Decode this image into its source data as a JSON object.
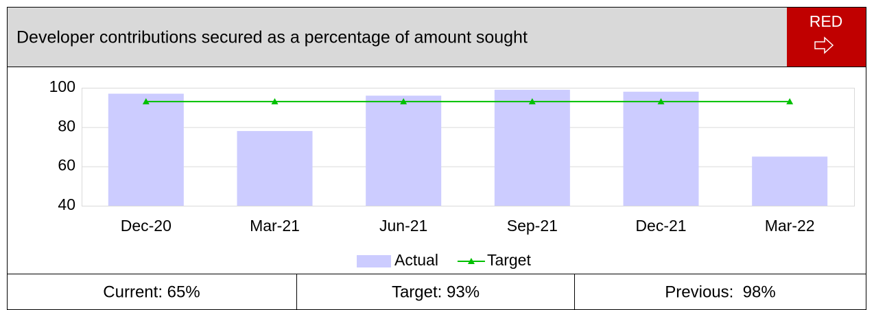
{
  "header": {
    "title": "Developer contributions secured as a percentage of amount sought",
    "status": "RED"
  },
  "chart_data": {
    "type": "bar",
    "categories": [
      "Dec-20",
      "Mar-21",
      "Jun-21",
      "Sep-21",
      "Dec-21",
      "Mar-22"
    ],
    "series": [
      {
        "name": "Actual",
        "type": "bar",
        "color": "#ccccff",
        "values": [
          97,
          78,
          96,
          99,
          98,
          65
        ]
      },
      {
        "name": "Target",
        "type": "line",
        "color": "#00c000",
        "values": [
          93,
          93,
          93,
          93,
          93,
          93
        ]
      }
    ],
    "ylim": [
      40,
      100
    ],
    "yticks": [
      40,
      60,
      80,
      100
    ],
    "grid": true,
    "legend": "bottom"
  },
  "summary": [
    "Current: 65%",
    "Target: 93%",
    "Previous:  98%"
  ]
}
